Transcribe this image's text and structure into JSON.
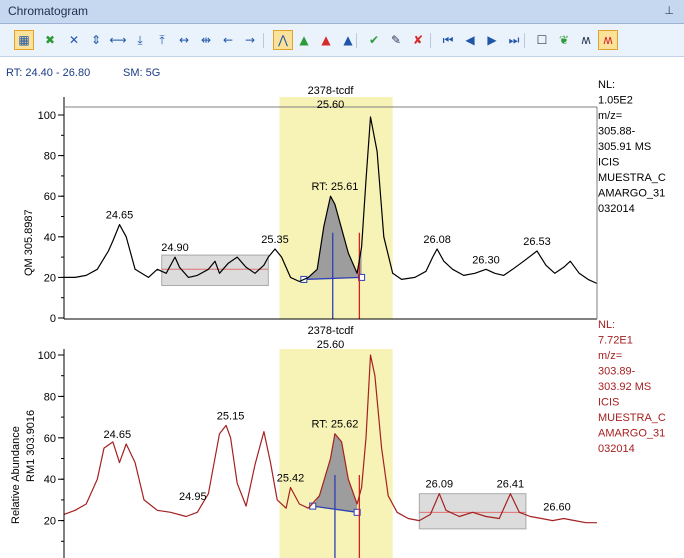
{
  "window": {
    "title": "Chromatogram",
    "pin_icon": "pin-icon"
  },
  "toolbar": {
    "buttons": [
      {
        "name": "grid-view-button",
        "glyph": "▦",
        "active": true,
        "tone": ""
      },
      {
        "name": "zoom-fit-button",
        "glyph": "✖",
        "active": false,
        "tone": "green"
      },
      {
        "name": "zoom-all-button",
        "glyph": "✕",
        "active": false,
        "tone": ""
      },
      {
        "name": "zoom-vertical-button",
        "glyph": "⇕",
        "active": false,
        "tone": ""
      },
      {
        "name": "zoom-horizontal-button",
        "glyph": "⟷",
        "active": false,
        "tone": ""
      },
      {
        "name": "scale-down-button",
        "glyph": "⤓",
        "active": false,
        "tone": ""
      },
      {
        "name": "scale-up-button",
        "glyph": "⤒",
        "active": false,
        "tone": ""
      },
      {
        "name": "range-button",
        "glyph": "↔",
        "active": false,
        "tone": ""
      },
      {
        "name": "expand-range-button",
        "glyph": "⇹",
        "active": false,
        "tone": ""
      },
      {
        "name": "pan-left-button",
        "glyph": "←",
        "active": false,
        "tone": ""
      },
      {
        "name": "pan-right-button",
        "glyph": "→",
        "active": false,
        "tone": ""
      },
      {
        "name": "peak-detect-button",
        "glyph": "⋀",
        "active": true,
        "tone": ""
      },
      {
        "name": "peak-add-button",
        "glyph": "▲",
        "active": false,
        "tone": "green"
      },
      {
        "name": "peak-edit-button",
        "glyph": "▲",
        "active": false,
        "tone": "red"
      },
      {
        "name": "peak-delete-button",
        "glyph": "▲",
        "active": false,
        "tone": ""
      },
      {
        "name": "accept-button",
        "glyph": "✔",
        "active": false,
        "tone": "green"
      },
      {
        "name": "marker-button",
        "glyph": "✎",
        "active": false,
        "tone": "dark"
      },
      {
        "name": "reject-button",
        "glyph": "✘",
        "active": false,
        "tone": "red"
      },
      {
        "name": "first-button",
        "glyph": "⏮",
        "active": false,
        "tone": ""
      },
      {
        "name": "previous-button",
        "glyph": "◀",
        "active": false,
        "tone": ""
      },
      {
        "name": "next-button",
        "glyph": "▶",
        "active": false,
        "tone": ""
      },
      {
        "name": "last-button",
        "glyph": "⏭",
        "active": false,
        "tone": ""
      },
      {
        "name": "document-button",
        "glyph": "☐",
        "active": false,
        "tone": "dark"
      },
      {
        "name": "spectrum-button",
        "glyph": "❦",
        "active": false,
        "tone": "green"
      },
      {
        "name": "mass-trace-button",
        "glyph": "ʍ",
        "active": false,
        "tone": "dark"
      },
      {
        "name": "overlay-trace-button",
        "glyph": "ʍ",
        "active": true,
        "tone": "red"
      }
    ]
  },
  "header": {
    "rt_label": "RT: 24.40 - 26.80",
    "sm_label": "SM: 5G"
  },
  "colors": {
    "trace_top": "#000000",
    "trace_bottom": "#a52020",
    "highlight": "#f7f3b7",
    "noise_box": "#dcdcdc",
    "peak_fill": "#9d9d9d",
    "baseline": "#2d3fb8",
    "marker": "#d42020",
    "side_text_top": "#000000",
    "side_text_bottom": "#a52020"
  },
  "chart_data": [
    {
      "type": "line",
      "ylabel": "",
      "trace_label": "QM  305.8987",
      "ylim": [
        0,
        100
      ],
      "yticks": [
        0,
        20,
        40,
        60,
        80,
        100
      ],
      "xlim": [
        24.4,
        26.8
      ],
      "x": [
        24.4,
        24.45,
        24.5,
        24.55,
        24.6,
        24.62,
        24.65,
        24.68,
        24.72,
        24.78,
        24.82,
        24.86,
        24.9,
        24.92,
        24.96,
        25.0,
        25.05,
        25.08,
        25.1,
        25.14,
        25.18,
        25.22,
        25.26,
        25.3,
        25.32,
        25.35,
        25.38,
        25.42,
        25.46,
        25.5,
        25.54,
        25.57,
        25.6,
        25.62,
        25.65,
        25.68,
        25.72,
        25.74,
        25.76,
        25.78,
        25.81,
        25.84,
        25.88,
        25.92,
        25.98,
        26.03,
        26.06,
        26.08,
        26.11,
        26.15,
        26.2,
        26.25,
        26.3,
        26.34,
        26.38,
        26.42,
        26.47,
        26.53,
        26.57,
        26.61,
        26.65,
        26.68,
        26.72,
        26.76,
        26.8
      ],
      "y": [
        20,
        20,
        21,
        24,
        33,
        38,
        46,
        40,
        24,
        20,
        24,
        22,
        30,
        25,
        20,
        21,
        24,
        28,
        22,
        27,
        30,
        25,
        22,
        26,
        30,
        34,
        30,
        20,
        18,
        20,
        24,
        45,
        60,
        56,
        44,
        32,
        22,
        35,
        68,
        99,
        82,
        40,
        22,
        19,
        20,
        23,
        30,
        34,
        28,
        24,
        21,
        22,
        24,
        22,
        21,
        24,
        28,
        33,
        26,
        22,
        25,
        28,
        22,
        19,
        17
      ],
      "labels": [
        {
          "text": "24.65",
          "x": 24.65,
          "y": 46
        },
        {
          "text": "24.90",
          "x": 24.9,
          "y": 30
        },
        {
          "text": "25.35",
          "x": 25.35,
          "y": 34
        },
        {
          "text": "RT: 25.61",
          "x": 25.62,
          "y": 60
        },
        {
          "text": "26.08",
          "x": 26.08,
          "y": 34
        },
        {
          "text": "26.30",
          "x": 26.3,
          "y": 24
        },
        {
          "text": "26.53",
          "x": 26.53,
          "y": 33
        }
      ],
      "peak_title": "2378-tcdf",
      "peak_rt": "25.60",
      "highlight_range": [
        25.37,
        25.88
      ],
      "noise_range": [
        24.84,
        25.32
      ],
      "noise_y": [
        16,
        31
      ],
      "noise_mean": 24,
      "peak_start": 25.48,
      "peak_end": 25.74,
      "peak_base_y": [
        19,
        20
      ],
      "apex_x": 25.61,
      "marker_x": 25.73,
      "side_text": [
        "NL:",
        "1.05E2",
        "m/z=",
        "305.88-",
        "305.91  MS",
        "ICIS",
        "MUESTRA_C",
        "AMARGO_31",
        "032014"
      ]
    },
    {
      "type": "line",
      "ylabel": "Relative Abundance",
      "trace_label": "RM1  303.9016",
      "ylim": [
        0,
        100
      ],
      "yticks": [
        20,
        40,
        60,
        80,
        100
      ],
      "xlim": [
        24.4,
        26.8
      ],
      "x": [
        24.4,
        24.45,
        24.5,
        24.55,
        24.58,
        24.62,
        24.65,
        24.68,
        24.72,
        24.76,
        24.82,
        24.88,
        24.95,
        25.0,
        25.05,
        25.1,
        25.13,
        25.15,
        25.18,
        25.22,
        25.26,
        25.3,
        25.33,
        25.36,
        25.4,
        25.42,
        25.46,
        25.5,
        25.55,
        25.6,
        25.62,
        25.65,
        25.68,
        25.72,
        25.74,
        25.76,
        25.78,
        25.8,
        25.83,
        25.86,
        25.9,
        25.95,
        26.0,
        26.05,
        26.09,
        26.12,
        26.18,
        26.24,
        26.3,
        26.36,
        26.41,
        26.45,
        26.5,
        26.55,
        26.6,
        26.65,
        26.7,
        26.75,
        26.8
      ],
      "y": [
        23,
        25,
        28,
        40,
        55,
        58,
        48,
        57,
        48,
        30,
        25,
        24,
        22,
        24,
        33,
        62,
        66,
        60,
        38,
        27,
        47,
        63,
        48,
        30,
        26,
        36,
        28,
        26,
        32,
        50,
        62,
        58,
        40,
        28,
        36,
        60,
        100,
        90,
        55,
        32,
        24,
        21,
        20,
        23,
        33,
        25,
        22,
        24,
        22,
        21,
        33,
        24,
        22,
        21,
        20,
        21,
        20,
        19,
        19
      ],
      "labels": [
        {
          "text": "24.65",
          "x": 24.64,
          "y": 57
        },
        {
          "text": "24.95",
          "x": 24.98,
          "y": 27
        },
        {
          "text": "25.15",
          "x": 25.15,
          "y": 66
        },
        {
          "text": "25.42",
          "x": 25.42,
          "y": 36
        },
        {
          "text": "RT: 25.62",
          "x": 25.62,
          "y": 62
        },
        {
          "text": "26.09",
          "x": 26.09,
          "y": 33
        },
        {
          "text": "26.41",
          "x": 26.41,
          "y": 33
        },
        {
          "text": "26.60",
          "x": 26.62,
          "y": 22
        }
      ],
      "peak_title": "2378-tcdf",
      "peak_rt": "25.60",
      "highlight_range": [
        25.37,
        25.88
      ],
      "noise_range": [
        26.0,
        26.48
      ],
      "noise_y": [
        16,
        33
      ],
      "noise_mean": 24,
      "peak_start": 25.52,
      "peak_end": 25.72,
      "peak_base_y": [
        27,
        24
      ],
      "apex_x": 25.62,
      "marker_x": 25.73,
      "side_text": [
        "NL:",
        "7.72E1",
        "m/z=",
        "303.89-",
        "303.92  MS",
        "ICIS",
        "MUESTRA_C",
        "AMARGO_31",
        "032014"
      ]
    }
  ]
}
